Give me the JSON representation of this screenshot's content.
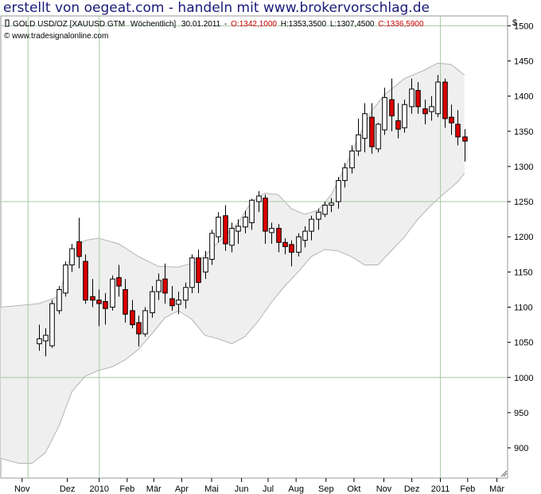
{
  "banner": "erstellt von oegeat.com - handeln mit www.brokervorschlag.de",
  "chart_data": {
    "type": "candlestick",
    "header": {
      "instrument": "GOLD USD/OZ [XAUUSD GTM",
      "period": "Wöchentlich]",
      "date": "30.01.2011",
      "open_label": "O:1342,1000",
      "high_label": "H:1353,3500",
      "low_label": "L:1307,4500",
      "close_label": "C:1336,5900"
    },
    "copyright": "© www.tradesignalonline.com",
    "currency": "$",
    "y_axis": {
      "ticks": [
        900,
        950,
        1000,
        1050,
        1100,
        1150,
        1200,
        1250,
        1300,
        1350,
        1400,
        1450,
        1500
      ],
      "range": [
        857,
        1514
      ]
    },
    "x_axis": {
      "labels": [
        "Nov",
        "Dez",
        "2010",
        "Feb",
        "Mär",
        "Apr",
        "Mai",
        "Jun",
        "Jul",
        "Aug",
        "Sep",
        "Okt",
        "Nov",
        "Dez",
        "2011",
        "Feb",
        "Mär"
      ],
      "label_week": [
        -2.5,
        4.3,
        9.1,
        13.3,
        17.3,
        21.5,
        26,
        30.5,
        34.5,
        38.7,
        43.2,
        47.4,
        51.9,
        56.1,
        60.4,
        64.5,
        68.9
      ],
      "week_range": [
        -5.7,
        70.5
      ]
    },
    "reference_lines": {
      "horizontal": [
        1000,
        1250,
        1500
      ],
      "vertical_week": [
        -1.6,
        9.1,
        60.4
      ]
    },
    "colors": {
      "up": "#ffffff",
      "down": "#dd0000",
      "band_fill": "#efefef",
      "band_line": "#b4b4b4",
      "grid": "#a8c8a8"
    },
    "candles": [
      {
        "w": 0,
        "o": 1048,
        "h": 1075,
        "l": 1038,
        "c": 1055
      },
      {
        "w": 1,
        "o": 1052,
        "h": 1070,
        "l": 1030,
        "c": 1060
      },
      {
        "w": 2,
        "o": 1045,
        "h": 1110,
        "l": 1042,
        "c": 1105
      },
      {
        "w": 3,
        "o": 1095,
        "h": 1130,
        "l": 1090,
        "c": 1125
      },
      {
        "w": 4,
        "o": 1120,
        "h": 1165,
        "l": 1115,
        "c": 1160
      },
      {
        "w": 5,
        "o": 1160,
        "h": 1190,
        "l": 1150,
        "c": 1183
      },
      {
        "w": 6,
        "o": 1193,
        "h": 1227,
        "l": 1155,
        "c": 1172
      },
      {
        "w": 7,
        "o": 1165,
        "h": 1175,
        "l": 1105,
        "c": 1110
      },
      {
        "w": 8,
        "o": 1115,
        "h": 1140,
        "l": 1100,
        "c": 1110
      },
      {
        "w": 9,
        "o": 1110,
        "h": 1125,
        "l": 1073,
        "c": 1105
      },
      {
        "w": 10,
        "o": 1108,
        "h": 1120,
        "l": 1075,
        "c": 1098
      },
      {
        "w": 11,
        "o": 1100,
        "h": 1145,
        "l": 1095,
        "c": 1140
      },
      {
        "w": 12,
        "o": 1142,
        "h": 1160,
        "l": 1115,
        "c": 1130
      },
      {
        "w": 13,
        "o": 1125,
        "h": 1140,
        "l": 1078,
        "c": 1090
      },
      {
        "w": 14,
        "o": 1095,
        "h": 1110,
        "l": 1070,
        "c": 1075
      },
      {
        "w": 15,
        "o": 1078,
        "h": 1088,
        "l": 1044,
        "c": 1062
      },
      {
        "w": 16,
        "o": 1062,
        "h": 1100,
        "l": 1058,
        "c": 1095
      },
      {
        "w": 17,
        "o": 1092,
        "h": 1130,
        "l": 1085,
        "c": 1122
      },
      {
        "w": 18,
        "o": 1122,
        "h": 1148,
        "l": 1110,
        "c": 1138
      },
      {
        "w": 19,
        "o": 1140,
        "h": 1162,
        "l": 1105,
        "c": 1120
      },
      {
        "w": 20,
        "o": 1112,
        "h": 1130,
        "l": 1095,
        "c": 1102
      },
      {
        "w": 21,
        "o": 1104,
        "h": 1122,
        "l": 1090,
        "c": 1110
      },
      {
        "w": 22,
        "o": 1110,
        "h": 1135,
        "l": 1098,
        "c": 1128
      },
      {
        "w": 23,
        "o": 1128,
        "h": 1175,
        "l": 1120,
        "c": 1170
      },
      {
        "w": 24,
        "o": 1170,
        "h": 1182,
        "l": 1120,
        "c": 1135
      },
      {
        "w": 25,
        "o": 1150,
        "h": 1180,
        "l": 1140,
        "c": 1170
      },
      {
        "w": 26,
        "o": 1168,
        "h": 1210,
        "l": 1160,
        "c": 1205
      },
      {
        "w": 27,
        "o": 1200,
        "h": 1235,
        "l": 1192,
        "c": 1228
      },
      {
        "w": 28,
        "o": 1230,
        "h": 1245,
        "l": 1180,
        "c": 1190
      },
      {
        "w": 29,
        "o": 1188,
        "h": 1220,
        "l": 1178,
        "c": 1212
      },
      {
        "w": 30,
        "o": 1208,
        "h": 1225,
        "l": 1190,
        "c": 1215
      },
      {
        "w": 31,
        "o": 1214,
        "h": 1237,
        "l": 1205,
        "c": 1228
      },
      {
        "w": 32,
        "o": 1220,
        "h": 1254,
        "l": 1210,
        "c": 1252
      },
      {
        "w": 33,
        "o": 1250,
        "h": 1265,
        "l": 1235,
        "c": 1258
      },
      {
        "w": 34,
        "o": 1255,
        "h": 1260,
        "l": 1190,
        "c": 1208
      },
      {
        "w": 35,
        "o": 1206,
        "h": 1220,
        "l": 1190,
        "c": 1212
      },
      {
        "w": 36,
        "o": 1212,
        "h": 1218,
        "l": 1178,
        "c": 1192
      },
      {
        "w": 37,
        "o": 1192,
        "h": 1198,
        "l": 1175,
        "c": 1186
      },
      {
        "w": 38,
        "o": 1189,
        "h": 1195,
        "l": 1158,
        "c": 1178
      },
      {
        "w": 39,
        "o": 1178,
        "h": 1205,
        "l": 1172,
        "c": 1200
      },
      {
        "w": 40,
        "o": 1195,
        "h": 1215,
        "l": 1185,
        "c": 1208
      },
      {
        "w": 41,
        "o": 1208,
        "h": 1230,
        "l": 1195,
        "c": 1225
      },
      {
        "w": 42,
        "o": 1225,
        "h": 1240,
        "l": 1210,
        "c": 1235
      },
      {
        "w": 43,
        "o": 1232,
        "h": 1250,
        "l": 1228,
        "c": 1245
      },
      {
        "w": 44,
        "o": 1245,
        "h": 1255,
        "l": 1235,
        "c": 1248
      },
      {
        "w": 45,
        "o": 1250,
        "h": 1285,
        "l": 1240,
        "c": 1280
      },
      {
        "w": 46,
        "o": 1280,
        "h": 1305,
        "l": 1270,
        "c": 1298
      },
      {
        "w": 47,
        "o": 1298,
        "h": 1330,
        "l": 1290,
        "c": 1322
      },
      {
        "w": 48,
        "o": 1322,
        "h": 1368,
        "l": 1315,
        "c": 1345
      },
      {
        "w": 49,
        "o": 1340,
        "h": 1390,
        "l": 1320,
        "c": 1375
      },
      {
        "w": 50,
        "o": 1370,
        "h": 1390,
        "l": 1318,
        "c": 1328
      },
      {
        "w": 51,
        "o": 1325,
        "h": 1362,
        "l": 1320,
        "c": 1360
      },
      {
        "w": 52,
        "o": 1352,
        "h": 1412,
        "l": 1345,
        "c": 1398
      },
      {
        "w": 53,
        "o": 1395,
        "h": 1425,
        "l": 1350,
        "c": 1372
      },
      {
        "w": 54,
        "o": 1365,
        "h": 1390,
        "l": 1340,
        "c": 1353
      },
      {
        "w": 55,
        "o": 1355,
        "h": 1395,
        "l": 1348,
        "c": 1388
      },
      {
        "w": 56,
        "o": 1385,
        "h": 1425,
        "l": 1375,
        "c": 1410
      },
      {
        "w": 57,
        "o": 1408,
        "h": 1420,
        "l": 1375,
        "c": 1385
      },
      {
        "w": 58,
        "o": 1382,
        "h": 1395,
        "l": 1360,
        "c": 1375
      },
      {
        "w": 59,
        "o": 1378,
        "h": 1400,
        "l": 1365,
        "c": 1385
      },
      {
        "w": 60,
        "o": 1375,
        "h": 1430,
        "l": 1370,
        "c": 1420
      },
      {
        "w": 61,
        "o": 1420,
        "h": 1425,
        "l": 1355,
        "c": 1368
      },
      {
        "w": 62,
        "o": 1370,
        "h": 1388,
        "l": 1345,
        "c": 1362
      },
      {
        "w": 63,
        "o": 1360,
        "h": 1380,
        "l": 1330,
        "c": 1342
      },
      {
        "w": 64,
        "o": 1342,
        "h": 1353,
        "l": 1307,
        "c": 1336
      }
    ],
    "band_upper": [
      [
        -5.7,
        1100
      ],
      [
        0,
        1105
      ],
      [
        3,
        1115
      ],
      [
        5,
        1180
      ],
      [
        7,
        1195
      ],
      [
        9,
        1198
      ],
      [
        12,
        1190
      ],
      [
        15,
        1172
      ],
      [
        18,
        1158
      ],
      [
        21,
        1157
      ],
      [
        24,
        1165
      ],
      [
        27,
        1192
      ],
      [
        30,
        1220
      ],
      [
        32,
        1250
      ],
      [
        34,
        1262
      ],
      [
        36,
        1260
      ],
      [
        38,
        1240
      ],
      [
        40,
        1232
      ],
      [
        42,
        1238
      ],
      [
        44,
        1260
      ],
      [
        46,
        1298
      ],
      [
        48,
        1340
      ],
      [
        50,
        1378
      ],
      [
        52,
        1402
      ],
      [
        55,
        1425
      ],
      [
        58,
        1437
      ],
      [
        60,
        1447
      ],
      [
        62,
        1445
      ],
      [
        64,
        1430
      ]
    ],
    "band_lower": [
      [
        -5.7,
        885
      ],
      [
        -3,
        878
      ],
      [
        -1,
        878
      ],
      [
        1,
        893
      ],
      [
        3,
        930
      ],
      [
        5,
        980
      ],
      [
        7,
        1002
      ],
      [
        9,
        1010
      ],
      [
        11,
        1015
      ],
      [
        13,
        1025
      ],
      [
        15,
        1040
      ],
      [
        17,
        1062
      ],
      [
        19,
        1085
      ],
      [
        21,
        1095
      ],
      [
        23,
        1083
      ],
      [
        25,
        1060
      ],
      [
        27,
        1055
      ],
      [
        29,
        1048
      ],
      [
        31,
        1058
      ],
      [
        33,
        1080
      ],
      [
        35,
        1107
      ],
      [
        37,
        1130
      ],
      [
        39,
        1150
      ],
      [
        41,
        1172
      ],
      [
        43,
        1182
      ],
      [
        45,
        1180
      ],
      [
        47,
        1172
      ],
      [
        49,
        1160
      ],
      [
        51,
        1160
      ],
      [
        53,
        1180
      ],
      [
        55,
        1200
      ],
      [
        57,
        1225
      ],
      [
        59,
        1245
      ],
      [
        61,
        1262
      ],
      [
        63,
        1278
      ],
      [
        64,
        1290
      ]
    ]
  }
}
